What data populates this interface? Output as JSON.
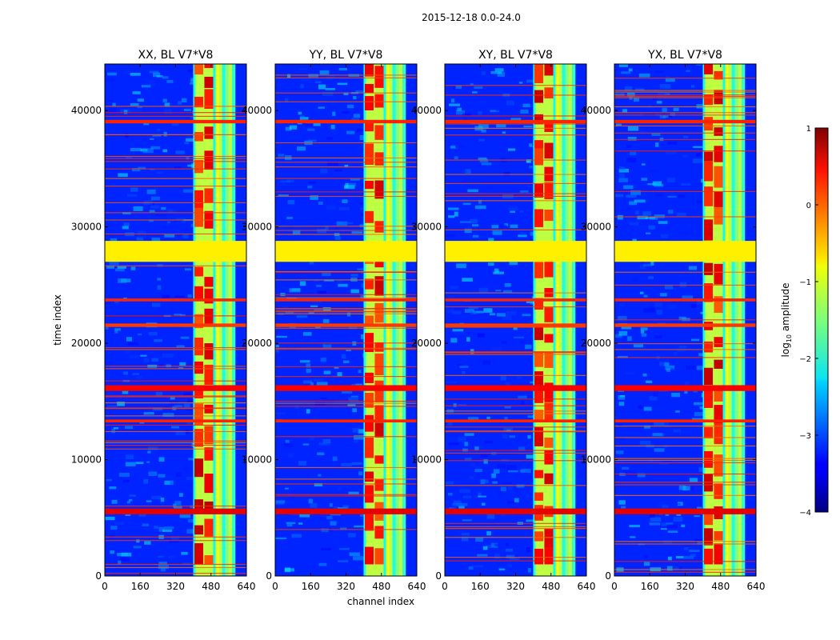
{
  "chart_data": {
    "type": "heatmap",
    "suptitle": "2015-12-18 0.0-24.0",
    "xlabel": "channel index",
    "ylabel": "time index",
    "xlim": [
      0,
      640
    ],
    "ylim": [
      0,
      44000
    ],
    "xticks": [
      0,
      160,
      320,
      480,
      640
    ],
    "yticks": [
      0,
      10000,
      20000,
      30000,
      40000
    ],
    "panels": [
      {
        "title": "XX, BL V7*V8",
        "pol": "XX"
      },
      {
        "title": "YY, BL V7*V8",
        "pol": "YY"
      },
      {
        "title": "XY, BL V7*V8",
        "pol": "XY"
      },
      {
        "title": "YX, BL V7*V8",
        "pol": "YX"
      }
    ],
    "colorbar": {
      "label": "log10 amplitude",
      "label_main": "log",
      "label_sub": "10",
      "label_rest": " amplitude",
      "range": [
        -4,
        1
      ],
      "ticks": [
        -4,
        -3,
        -2,
        -1,
        0,
        1
      ],
      "tick_labels": [
        "−4",
        "−3",
        "−2",
        "−1",
        "0",
        "1"
      ],
      "colormap": "jet"
    },
    "features": {
      "background_level": -3.2,
      "rfi_channel_band": [
        400,
        590
      ],
      "rfi_band_level": -1.2,
      "rfi_strong_columns": [
        [
          405,
          445
        ],
        [
          450,
          490
        ]
      ],
      "flagged_time_block": [
        27000,
        28800
      ],
      "flagged_block_level": -0.8,
      "strong_time_bands": [
        {
          "t0": 38900,
          "t1": 39200,
          "level": 0.2
        },
        {
          "t0": 23600,
          "t1": 23850,
          "level": 0.2
        },
        {
          "t0": 21400,
          "t1": 21700,
          "level": 0.1
        },
        {
          "t0": 15900,
          "t1": 16400,
          "level": 0.4
        },
        {
          "t0": 13200,
          "t1": 13450,
          "level": 0.2
        },
        {
          "t0": 5300,
          "t1": 5800,
          "level": 0.5
        }
      ]
    }
  }
}
